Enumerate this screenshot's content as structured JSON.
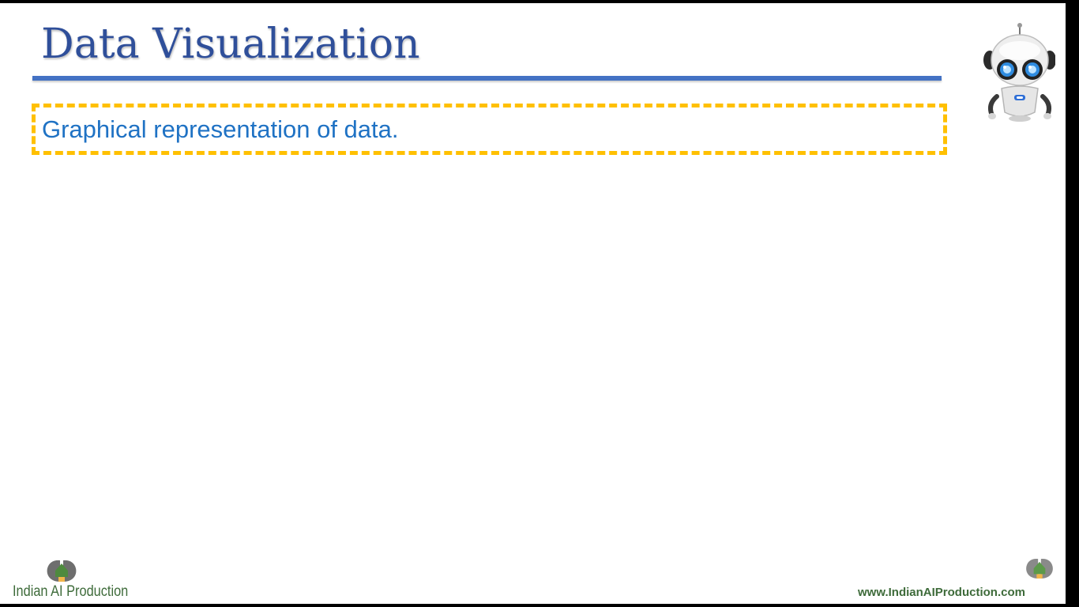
{
  "slide": {
    "title": "Data Visualization",
    "callout_text": "Graphical representation of data."
  },
  "branding": {
    "logo_text": "Indian AI Production",
    "website": "www.IndianAIProduction.com"
  },
  "icons": {
    "mascot": "robot-icon",
    "brand_logo": "head-logo-icon"
  },
  "colors": {
    "title": "#2f4f9a",
    "title_rule": "#4472c4",
    "callout_border": "#ffc000",
    "callout_text": "#1f72c4",
    "brand_green": "#3e6b3a"
  }
}
